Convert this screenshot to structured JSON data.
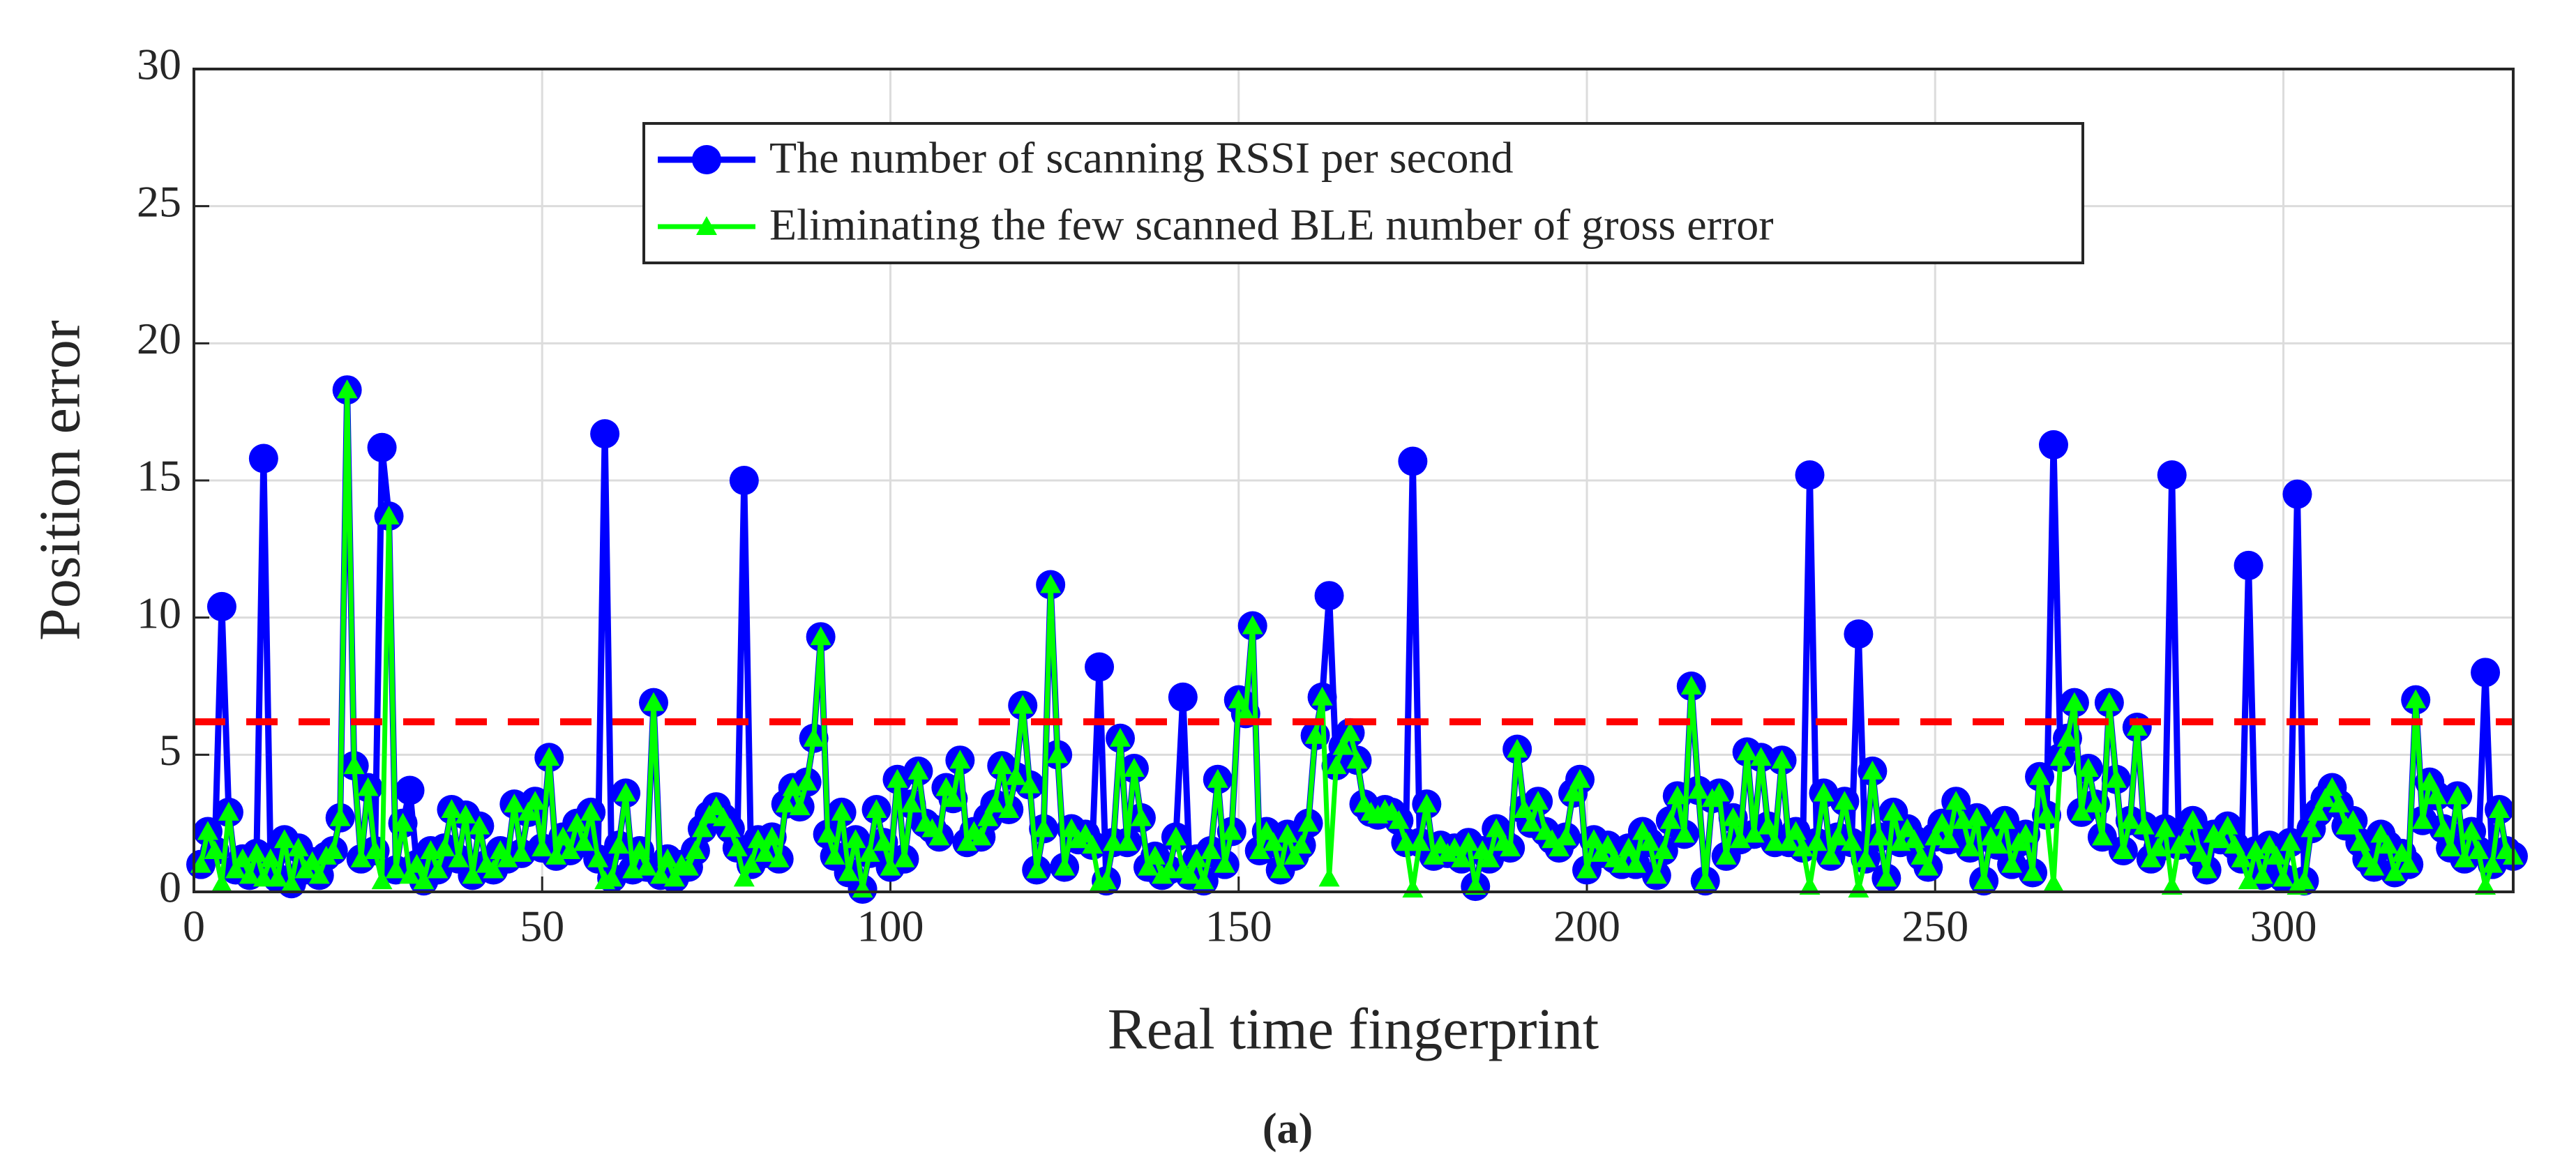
{
  "chart_data": {
    "type": "line",
    "xlabel": "Real time fingerprint",
    "ylabel": "Position error",
    "caption": "(a)",
    "xlim": [
      0,
      333
    ],
    "xticks": [
      0,
      50,
      100,
      150,
      200,
      250,
      300
    ],
    "ylim": [
      0,
      30
    ],
    "yticks": [
      0,
      5,
      10,
      15,
      20,
      25,
      30
    ],
    "grid": true,
    "legend": "upper center",
    "threshold": 6.2,
    "threshold_color": "#ff0000",
    "x": [
      1,
      2,
      3,
      4,
      5,
      6,
      7,
      8,
      9,
      10,
      11,
      12,
      13,
      14,
      15,
      16,
      17,
      18,
      19,
      20,
      21,
      22,
      23,
      24,
      25,
      26,
      27,
      28,
      29,
      30,
      31,
      32,
      33,
      34,
      35,
      36,
      37,
      38,
      39,
      40,
      41,
      42,
      43,
      44,
      45,
      46,
      47,
      48,
      49,
      50,
      51,
      52,
      53,
      54,
      55,
      56,
      57,
      58,
      59,
      60,
      61,
      62,
      63,
      64,
      65,
      66,
      67,
      68,
      69,
      70,
      71,
      72,
      73,
      74,
      75,
      76,
      77,
      78,
      79,
      80,
      81,
      82,
      83,
      84,
      85,
      86,
      87,
      88,
      89,
      90,
      91,
      92,
      93,
      94,
      95,
      96,
      97,
      98,
      99,
      100,
      101,
      102,
      103,
      104,
      105,
      106,
      107,
      108,
      109,
      110,
      111,
      112,
      113,
      114,
      115,
      116,
      117,
      118,
      119,
      120,
      121,
      122,
      123,
      124,
      125,
      126,
      127,
      128,
      129,
      130,
      131,
      132,
      133,
      134,
      135,
      136,
      137,
      138,
      139,
      140,
      141,
      142,
      143,
      144,
      145,
      146,
      147,
      148,
      149,
      150,
      151,
      152,
      153,
      154,
      155,
      156,
      157,
      158,
      159,
      160,
      161,
      162,
      163,
      164,
      165,
      166,
      167,
      168,
      169,
      170,
      171,
      172,
      173,
      174,
      175,
      176,
      177,
      178,
      179,
      180,
      181,
      182,
      183,
      184,
      185,
      186,
      187,
      188,
      189,
      190,
      191,
      192,
      193,
      194,
      195,
      196,
      197,
      198,
      199,
      200,
      201,
      202,
      203,
      204,
      205,
      206,
      207,
      208,
      209,
      210,
      211,
      212,
      213,
      214,
      215,
      216,
      217,
      218,
      219,
      220,
      221,
      222,
      223,
      224,
      225,
      226,
      227,
      228,
      229,
      230,
      231,
      232,
      233,
      234,
      235,
      236,
      237,
      238,
      239,
      240,
      241,
      242,
      243,
      244,
      245,
      246,
      247,
      248,
      249,
      250,
      251,
      252,
      253,
      254,
      255,
      256,
      257,
      258,
      259,
      260,
      261,
      262,
      263,
      264,
      265,
      266,
      267,
      268,
      269,
      270,
      271,
      272,
      273,
      274,
      275,
      276,
      277,
      278,
      279,
      280,
      281,
      282,
      283,
      284,
      285,
      286,
      287,
      288,
      289,
      290,
      291,
      292,
      293,
      294,
      295,
      296,
      297,
      298,
      299,
      300,
      301,
      302,
      303,
      304,
      305,
      306,
      307,
      308,
      309,
      310,
      311,
      312,
      313,
      314,
      315,
      316,
      317,
      318,
      319,
      320,
      321,
      322,
      323,
      324,
      325,
      326,
      327,
      328,
      329,
      330,
      331,
      332,
      333
    ],
    "series": [
      {
        "name": "The number of scanning RSSI per second",
        "color": "#0000ff",
        "marker": "circle",
        "values": [
          1.0,
          2.2,
          1.5,
          10.4,
          2.9,
          0.8,
          1.2,
          0.6,
          1.4,
          15.8,
          1.2,
          0.5,
          1.9,
          0.3,
          1.6,
          0.8,
          1.1,
          0.6,
          1.3,
          1.5,
          2.7,
          18.3,
          4.6,
          1.2,
          3.8,
          1.5,
          16.2,
          13.7,
          0.8,
          2.5,
          3.7,
          1.0,
          0.4,
          1.5,
          0.8,
          1.6,
          3.0,
          1.2,
          2.8,
          0.6,
          2.4,
          1.0,
          0.8,
          1.5,
          1.2,
          3.2,
          1.4,
          2.9,
          3.3,
          1.6,
          4.9,
          1.3,
          2.0,
          1.5,
          2.5,
          1.8,
          2.9,
          1.2,
          16.7,
          0.5,
          1.7,
          3.6,
          0.8,
          1.5,
          0.9,
          6.9,
          0.6,
          1.2,
          0.5,
          1.0,
          0.9,
          1.5,
          2.3,
          2.8,
          3.1,
          2.7,
          2.3,
          1.6,
          15.0,
          1.0,
          1.9,
          1.4,
          2.0,
          1.2,
          3.2,
          3.8,
          3.1,
          4.0,
          5.6,
          9.3,
          2.1,
          1.3,
          2.9,
          0.7,
          1.9,
          0.1,
          1.4,
          3.0,
          1.8,
          0.9,
          4.1,
          1.2,
          3.2,
          4.4,
          2.5,
          2.3,
          2.0,
          3.8,
          3.4,
          4.8,
          1.8,
          2.2,
          2.0,
          2.7,
          3.2,
          4.6,
          3.0,
          4.2,
          6.8,
          3.9,
          0.8,
          2.3,
          11.2,
          5.0,
          0.9,
          2.3,
          1.9,
          2.1,
          1.7,
          8.2,
          0.4,
          1.8,
          5.6,
          1.8,
          4.5,
          2.7,
          0.9,
          1.3,
          0.6,
          0.8,
          2.0,
          7.1,
          0.6,
          1.2,
          0.4,
          1.5,
          4.1,
          1.0,
          2.2,
          7.0,
          6.5,
          9.7,
          1.5,
          2.2,
          1.8,
          0.8,
          2.1,
          1.3,
          1.7,
          2.5,
          5.7,
          7.1,
          10.8,
          4.6,
          5.3,
          5.8,
          4.8,
          3.2,
          2.9,
          2.8,
          3.0,
          2.9,
          2.6,
          1.8,
          15.7,
          1.8,
          3.2,
          1.3,
          1.7,
          1.4,
          1.6,
          1.2,
          1.8,
          0.2,
          1.5,
          1.2,
          2.3,
          1.8,
          1.6,
          5.2,
          3.0,
          2.5,
          3.3,
          2.2,
          1.9,
          1.6,
          2.0,
          3.6,
          4.1,
          0.8,
          1.9,
          1.4,
          1.7,
          1.2,
          1.0,
          1.6,
          1.0,
          2.2,
          1.8,
          0.6,
          1.5,
          2.6,
          3.5,
          2.1,
          7.5,
          3.7,
          0.4,
          3.4,
          3.6,
          1.3,
          2.7,
          1.9,
          5.1,
          2.1,
          4.9,
          2.4,
          1.8,
          4.8,
          1.8,
          2.2,
          1.6,
          15.2,
          1.8,
          3.6,
          1.3,
          2.0,
          3.3,
          1.8,
          9.4,
          1.2,
          4.4,
          2.0,
          0.5,
          2.9,
          1.8,
          2.3,
          1.9,
          1.3,
          0.9,
          2.0,
          2.5,
          1.9,
          3.3,
          2.6,
          1.6,
          2.7,
          0.4,
          2.0,
          1.7,
          2.6,
          1.0,
          1.8,
          2.1,
          0.7,
          4.2,
          2.8,
          16.3,
          4.9,
          5.6,
          6.9,
          2.9,
          4.5,
          3.2,
          2.0,
          6.9,
          4.1,
          1.5,
          2.6,
          6.0,
          2.4,
          1.2,
          1.6,
          2.3,
          15.2,
          1.7,
          2.0,
          2.6,
          1.4,
          0.8,
          2.1,
          1.9,
          2.4,
          1.7,
          1.2,
          11.9,
          1.5,
          0.6,
          1.7,
          1.3,
          0.5,
          1.8,
          14.5,
          0.4,
          2.3,
          2.9,
          3.4,
          3.8,
          3.2,
          2.4,
          2.6,
          1.8,
          1.2,
          0.9,
          2.1,
          1.7,
          0.7,
          1.4,
          1.0,
          7.0,
          2.6,
          4.0,
          3.5,
          2.3,
          1.6,
          3.5,
          1.2,
          2.2,
          1.5,
          8.0,
          1.0,
          3.0,
          1.5,
          1.3
        ]
      },
      {
        "name": "Eliminating the few scanned BLE number of gross error",
        "color": "#00ff00",
        "marker": "triangle",
        "values": [
          1.0,
          2.2,
          1.5,
          0.3,
          2.9,
          0.8,
          1.2,
          0.6,
          1.4,
          0.5,
          1.2,
          0.5,
          1.9,
          0.3,
          1.6,
          0.8,
          1.1,
          0.6,
          1.3,
          1.5,
          2.7,
          18.3,
          4.6,
          1.2,
          3.8,
          1.5,
          0.4,
          13.7,
          0.8,
          2.5,
          0.6,
          1.0,
          0.4,
          1.5,
          0.8,
          1.6,
          3.0,
          1.2,
          2.8,
          0.6,
          2.4,
          1.0,
          0.8,
          1.5,
          1.2,
          3.2,
          1.4,
          2.9,
          3.3,
          1.6,
          4.9,
          1.3,
          2.0,
          1.5,
          2.5,
          1.8,
          2.9,
          1.2,
          0.4,
          0.5,
          1.7,
          3.6,
          0.8,
          1.5,
          0.9,
          6.9,
          0.6,
          1.2,
          0.5,
          1.0,
          0.9,
          1.5,
          2.3,
          2.8,
          3.1,
          2.7,
          2.3,
          1.6,
          0.5,
          1.0,
          1.9,
          1.4,
          2.0,
          1.2,
          3.2,
          3.8,
          3.1,
          4.0,
          5.6,
          9.3,
          2.1,
          1.3,
          2.9,
          0.7,
          1.9,
          0.1,
          1.4,
          3.0,
          1.8,
          0.9,
          4.1,
          1.2,
          3.2,
          4.4,
          2.5,
          2.3,
          2.0,
          3.8,
          3.4,
          4.8,
          1.8,
          2.2,
          2.0,
          2.7,
          3.2,
          4.6,
          3.0,
          4.2,
          6.8,
          3.9,
          0.8,
          2.3,
          11.2,
          5.0,
          0.9,
          2.3,
          1.9,
          2.1,
          1.7,
          0.3,
          0.4,
          1.8,
          5.6,
          1.8,
          4.5,
          2.7,
          0.9,
          1.3,
          0.6,
          0.8,
          2.0,
          0.8,
          0.6,
          1.2,
          0.4,
          1.5,
          4.1,
          1.0,
          2.2,
          7.0,
          6.5,
          9.7,
          1.5,
          2.2,
          1.8,
          0.8,
          2.1,
          1.3,
          1.7,
          2.5,
          5.7,
          7.1,
          0.5,
          4.6,
          5.3,
          5.8,
          4.8,
          3.2,
          2.9,
          2.8,
          3.0,
          2.9,
          2.6,
          1.8,
          0.1,
          1.8,
          3.2,
          1.3,
          1.7,
          1.4,
          1.6,
          1.2,
          1.8,
          0.2,
          1.5,
          1.2,
          2.3,
          1.8,
          1.6,
          5.2,
          3.0,
          2.5,
          3.3,
          2.2,
          1.9,
          1.6,
          2.0,
          3.6,
          4.1,
          0.8,
          1.9,
          1.4,
          1.7,
          1.2,
          1.0,
          1.6,
          1.0,
          2.2,
          1.8,
          0.6,
          1.5,
          2.6,
          3.5,
          2.1,
          7.5,
          3.7,
          0.4,
          3.4,
          3.6,
          1.3,
          2.7,
          1.9,
          5.1,
          2.1,
          4.9,
          2.4,
          1.8,
          4.8,
          1.8,
          2.2,
          1.6,
          0.2,
          1.8,
          3.6,
          1.3,
          2.0,
          3.3,
          1.8,
          0.1,
          1.2,
          4.4,
          2.0,
          0.5,
          2.9,
          1.8,
          2.3,
          1.9,
          1.3,
          0.9,
          2.0,
          2.5,
          1.9,
          3.3,
          2.6,
          1.6,
          2.7,
          0.4,
          2.0,
          1.7,
          2.6,
          1.0,
          1.8,
          2.1,
          0.7,
          4.2,
          2.8,
          0.3,
          4.9,
          5.6,
          6.9,
          2.9,
          4.5,
          3.2,
          2.0,
          6.9,
          4.1,
          1.5,
          2.6,
          6.0,
          2.4,
          1.2,
          1.6,
          2.3,
          0.2,
          1.7,
          2.0,
          2.6,
          1.4,
          0.8,
          2.1,
          1.9,
          2.4,
          1.7,
          1.2,
          0.4,
          1.5,
          0.6,
          1.7,
          1.3,
          0.5,
          1.8,
          0.2,
          0.4,
          2.3,
          2.9,
          3.4,
          3.8,
          3.2,
          2.4,
          2.6,
          1.8,
          1.2,
          0.9,
          2.1,
          1.7,
          0.7,
          1.4,
          1.0,
          7.0,
          2.6,
          4.0,
          3.5,
          2.3,
          1.6,
          3.5,
          1.2,
          2.2,
          1.5,
          0.2,
          1.0,
          3.0,
          1.5,
          1.3
        ]
      }
    ]
  }
}
